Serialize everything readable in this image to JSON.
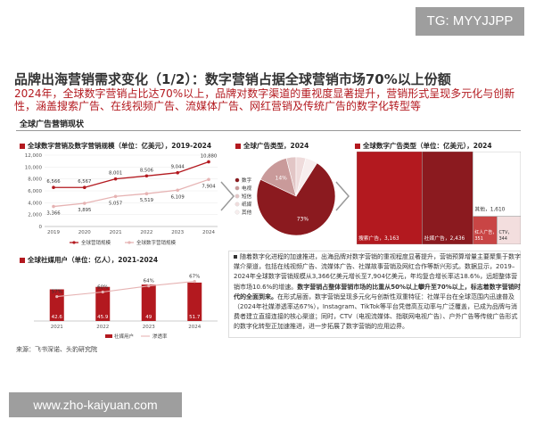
{
  "watermark_top": "TG: MYYJJPP",
  "watermark_bottom": "www.zho-kaiyuan.com",
  "title": "品牌出海营销需求变化（1/2）：数字营销占据全球营销市场70%以上份额",
  "subtitle": "2024年，全球数字营销占比达70%以上，品牌对数字渠道的重视度显著提升，营销形式呈现多元化与创新性，涵盖搜索广告、在线视频广告、流媒体广告、网红营销及传统广告的数字化转型等",
  "section_title": "全球广告营销现状",
  "source": "来源：飞书深诺、头豹研究院",
  "paragraph": [
    {
      "text": "随着数字化进程的加速推进，出海品牌对数字营销的重视程度显著提升，营销预算增量主要聚集于数字媒介渠道，包括在线视频广告、流媒体广告、社媒故事营销及网红合作等新兴形式。数据显示，2019–2024年全球数字营销规模从3,366亿美元增长至7,904亿美元，年均复合增长率达18.6%，远超整体营销市场10.6%的增速。",
      "bold": false
    },
    {
      "text": "数字营销占整体营销市场的比重从50%以上攀升至70%以上，标志着数字营销时代的全面到来。",
      "bold": true
    },
    {
      "text": "在形式层面，数字营销呈现多元化与创新性双重特征：社媒平台在全球范围内迅速普及（2024年社媒渗透率达67%），Instagram、TikTok等平台凭借高互动率与广泛覆盖，已成为品牌与消费者建立直接连接的核心渠道；同时，CTV（电视流媒体、指联网电视广告）、户外广告等传统广告形式的数字化转型正加速推进，进一步拓展了数字营销的应用边界。",
      "bold": false
    }
  ],
  "chart_data": [
    {
      "type": "line",
      "title": "全球数字营销及数字营销规模（单位：亿美元），2019-2024",
      "x": [
        "2019",
        "2020",
        "2021",
        "2022",
        "2023",
        "2024"
      ],
      "series": [
        {
          "name": "全球营销规模",
          "values": [
            6566,
            6567,
            8001,
            8506,
            9044,
            10880
          ],
          "labels": [
            "6,566",
            "6,567",
            "8,001",
            "8,506",
            "9,044",
            "10,880"
          ],
          "color": "#b3191f"
        },
        {
          "name": "全球数字营销规模",
          "values": [
            3366,
            3895,
            5057,
            5519,
            6109,
            7904
          ],
          "labels": [
            "3,366",
            "3,895",
            "5,057",
            "5,519",
            "6,109",
            "7,904"
          ],
          "color": "#e6b3b3"
        }
      ],
      "ylim": [
        0,
        12000
      ],
      "yticks": [
        0,
        2000,
        4000,
        6000,
        8000,
        10000,
        12000
      ],
      "ytick_labels": [
        "0",
        "2,000",
        "4,000",
        "6,000",
        "8,000",
        "10,000",
        "12,000"
      ],
      "legend_position": "bottom"
    },
    {
      "type": "pie",
      "title": "全球广告类型，2024",
      "slices": [
        {
          "name": "数字",
          "value": 73,
          "label": "73%",
          "color": "#8b1a1f"
        },
        {
          "name": "电视",
          "value": 14,
          "label": "14%",
          "color": "#c99a9a"
        },
        {
          "name": "短信",
          "value": 4,
          "label": "",
          "color": "#e2c6c6"
        },
        {
          "name": "纸媒",
          "value": 4,
          "label": "",
          "color": "#efdcdc"
        },
        {
          "name": "其他",
          "value": 5,
          "label": "",
          "color": "#f7eeee"
        }
      ],
      "legend_position": "left"
    },
    {
      "type": "treemap",
      "title": "全球数字广告类型（单位：亿美元），2024",
      "items": [
        {
          "name": "搜索广告",
          "value": 3163,
          "label": "3,163",
          "color": "#b3191f",
          "text_color": "#ffffff"
        },
        {
          "name": "社媒广告",
          "value": 2436,
          "label": "2,436",
          "color": "#8b1a1f",
          "text_color": "#ffffff"
        },
        {
          "name": "其他",
          "value": 1610,
          "label": "1,610",
          "color": "#ffffff",
          "text_color": "#333333"
        },
        {
          "name": "红人广告",
          "value": 351,
          "label": "351",
          "color": "#c94545",
          "text_color": "#ffffff"
        },
        {
          "name": "CTV",
          "value": 344,
          "label": "344",
          "color": "#f3dede",
          "text_color": "#333333"
        }
      ]
    },
    {
      "type": "bar",
      "title": "全球社媒用户（单位：亿人），2021-2024",
      "categories": [
        "2021",
        "2022",
        "2023",
        "2024"
      ],
      "series": [
        {
          "name": "社媒用户",
          "values": [
            42.6,
            45.9,
            49,
            51.7
          ],
          "labels": [
            "42.6",
            "45.9",
            "49",
            "51.7"
          ],
          "color": "#b3191f"
        },
        {
          "name": "渗透率",
          "values": [
            57,
            60,
            64,
            67
          ],
          "labels": [
            "57%",
            "60%",
            "64%",
            "67%"
          ],
          "color": "#e6b3b3",
          "type": "line"
        }
      ],
      "legend_position": "bottom"
    }
  ]
}
